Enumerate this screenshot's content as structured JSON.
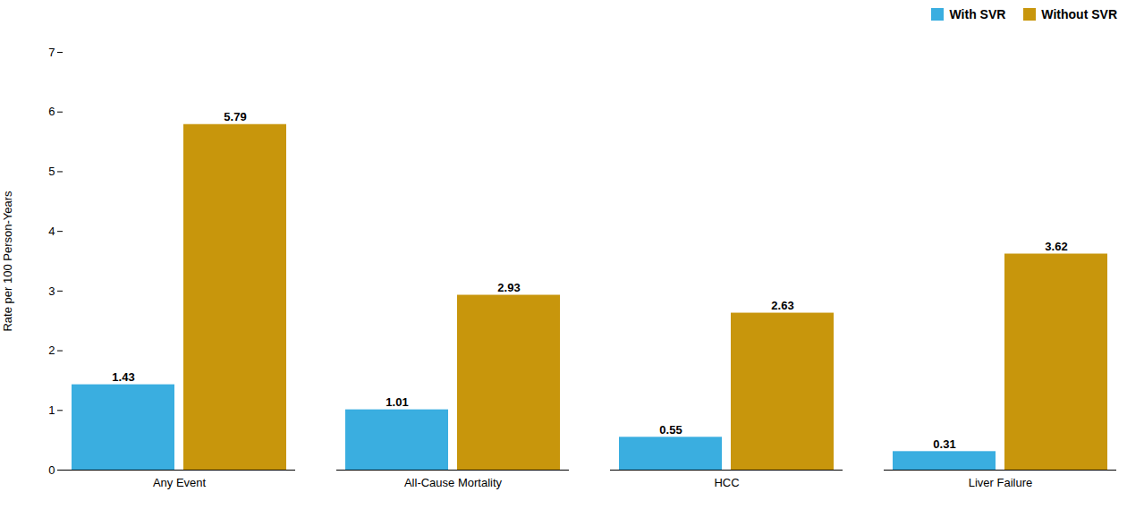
{
  "chart_data": {
    "type": "bar",
    "categories": [
      "Any Event",
      "All-Cause Mortality",
      "HCC",
      "Liver Failure"
    ],
    "series": [
      {
        "name": "With SVR",
        "color": "#3AAEE0",
        "values": [
          1.43,
          1.01,
          0.55,
          0.31
        ]
      },
      {
        "name": "Without SVR",
        "color": "#C8960C",
        "values": [
          5.79,
          2.93,
          2.63,
          3.62
        ]
      }
    ],
    "ylabel": "Rate per 100 Person-Years",
    "ylim": [
      0,
      7
    ],
    "yticks": [
      0,
      1,
      2,
      3,
      4,
      5,
      6,
      7
    ],
    "data_labels": true,
    "legend": "upper right",
    "grid": false
  }
}
